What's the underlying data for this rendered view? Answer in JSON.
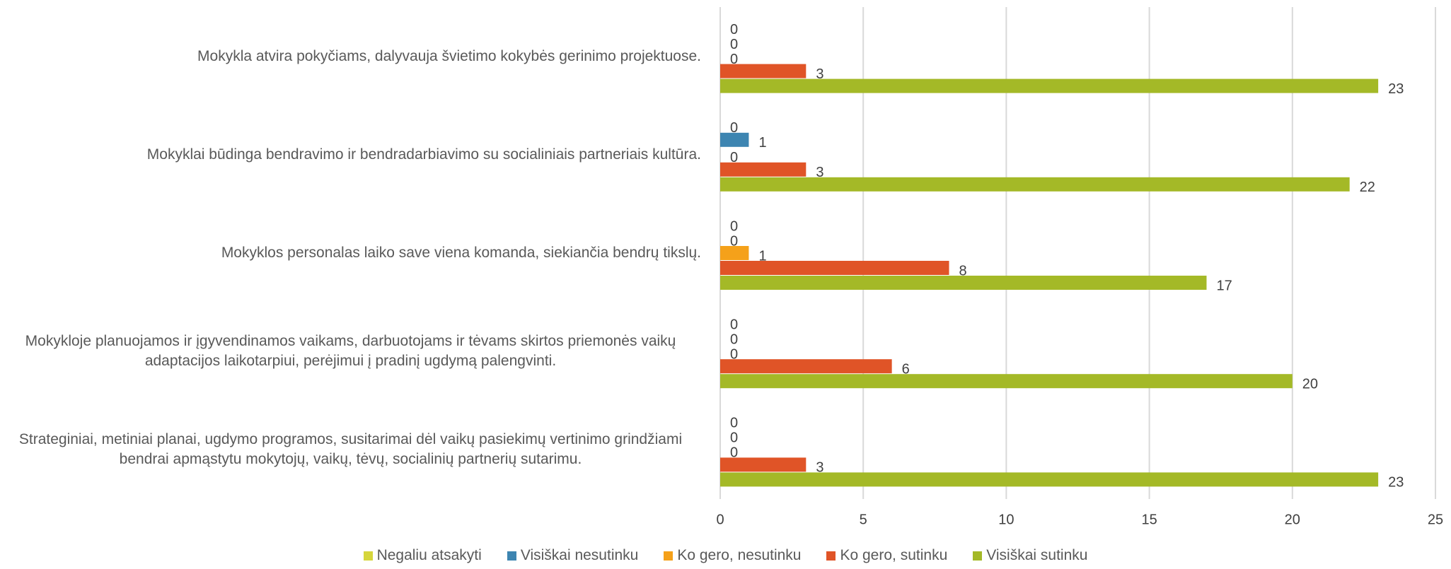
{
  "chart_data": {
    "type": "bar",
    "orientation": "horizontal",
    "categories": [
      "Mokykla atvira pokyčiams, dalyvauja švietimo kokybės gerinimo projektuose.",
      "Mokyklai būdinga bendravimo ir bendradarbiavimo su socialiniais partneriais kultūra.",
      "Mokyklos personalas laiko save viena komanda, siekiančia bendrų tikslų.",
      "Mokykloje planuojamos ir įgyvendinamos vaikams, darbuotojams ir tėvams skirtos priemonės vaikų adaptacijos laikotarpiui, perėjimui į pradinį ugdymą palengvinti.",
      "Strateginiai, metiniai planai, ugdymo programos, susitarimai dėl vaikų pasiekimų vertinimo grindžiami bendrai apmąstytu mokytojų, vaikų, tėvų, socialinių partnerių sutarimu."
    ],
    "series": [
      {
        "name": "Negaliu atsakyti",
        "color": "#d6d63c",
        "values": [
          0,
          0,
          0,
          0,
          0
        ]
      },
      {
        "name": "Visiškai nesutinku",
        "color": "#3d85b1",
        "values": [
          0,
          1,
          0,
          0,
          0
        ]
      },
      {
        "name": "Ko gero, nesutinku",
        "color": "#f5a11a",
        "values": [
          0,
          0,
          1,
          0,
          0
        ]
      },
      {
        "name": "Ko gero, sutinku",
        "color": "#e05427",
        "values": [
          3,
          3,
          8,
          6,
          3
        ]
      },
      {
        "name": "Visiškai sutinku",
        "color": "#a4b927",
        "values": [
          23,
          22,
          17,
          20,
          23
        ]
      }
    ],
    "xlim": [
      0,
      25
    ],
    "xticks": [
      0,
      5,
      10,
      15,
      20,
      25
    ],
    "grid": true,
    "legend": "bottom"
  }
}
